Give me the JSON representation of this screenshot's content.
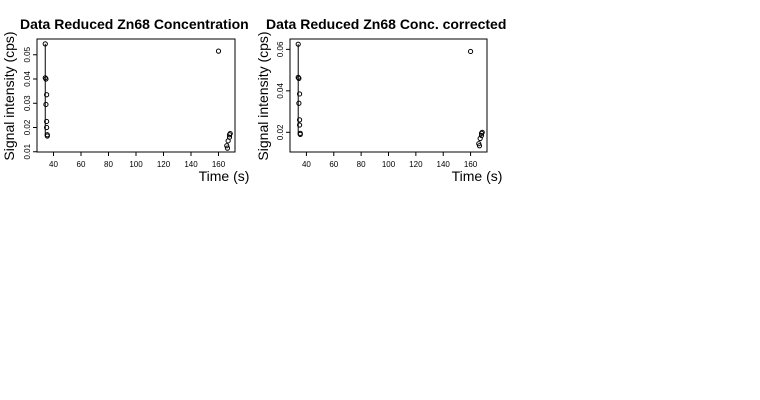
{
  "chart_data": [
    {
      "type": "scatter",
      "title": "Data Reduced Zn68 Concentration",
      "xlabel": "Time (s)",
      "ylabel": "Signal intensity (cps)",
      "xlim": [
        28,
        172
      ],
      "ylim": [
        0.0099,
        0.0565
      ],
      "xticks": [
        40,
        60,
        80,
        100,
        120,
        140,
        160
      ],
      "yticks": [
        0.01,
        0.02,
        0.03,
        0.04,
        0.05
      ],
      "ytick_labels": [
        "0.01",
        "0.02",
        "0.03",
        "0.04",
        "0.05"
      ],
      "grid": false,
      "points": [
        {
          "x": 34,
          "y": 0.0545
        },
        {
          "x": 34,
          "y": 0.0405
        },
        {
          "x": 34.5,
          "y": 0.04
        },
        {
          "x": 35,
          "y": 0.0335
        },
        {
          "x": 34.5,
          "y": 0.0295
        },
        {
          "x": 35,
          "y": 0.0225
        },
        {
          "x": 35,
          "y": 0.02
        },
        {
          "x": 35.5,
          "y": 0.017
        },
        {
          "x": 35.5,
          "y": 0.0165
        },
        {
          "x": 160,
          "y": 0.0515
        },
        {
          "x": 166,
          "y": 0.0125
        },
        {
          "x": 166.5,
          "y": 0.0115
        },
        {
          "x": 167,
          "y": 0.0145
        },
        {
          "x": 168,
          "y": 0.017
        },
        {
          "x": 168.5,
          "y": 0.0175
        },
        {
          "x": 168,
          "y": 0.016
        }
      ],
      "segment": {
        "x": 34,
        "y1": 0.0545,
        "y2": 0.0165
      }
    },
    {
      "type": "scatter",
      "title": "Data Reduced Zn68 Conc. corrected",
      "xlabel": "Time (s)",
      "ylabel": "Signal intensity (cps)",
      "xlim": [
        28,
        172
      ],
      "ylim": [
        0.0105,
        0.065
      ],
      "xticks": [
        40,
        60,
        80,
        100,
        120,
        140,
        160
      ],
      "yticks": [
        0.02,
        0.04,
        0.06
      ],
      "ytick_labels": [
        "0.02",
        "0.04",
        "0.06"
      ],
      "grid": false,
      "points": [
        {
          "x": 34,
          "y": 0.0625
        },
        {
          "x": 34,
          "y": 0.0465
        },
        {
          "x": 34.5,
          "y": 0.046
        },
        {
          "x": 35,
          "y": 0.0385
        },
        {
          "x": 34.5,
          "y": 0.034
        },
        {
          "x": 35,
          "y": 0.026
        },
        {
          "x": 35,
          "y": 0.0235
        },
        {
          "x": 35.5,
          "y": 0.0195
        },
        {
          "x": 35.5,
          "y": 0.019
        },
        {
          "x": 160,
          "y": 0.059
        },
        {
          "x": 166,
          "y": 0.0145
        },
        {
          "x": 166.5,
          "y": 0.0135
        },
        {
          "x": 167,
          "y": 0.017
        },
        {
          "x": 168,
          "y": 0.0195
        },
        {
          "x": 168.5,
          "y": 0.02
        },
        {
          "x": 168,
          "y": 0.0185
        }
      ],
      "segment": {
        "x": 34,
        "y1": 0.0625,
        "y2": 0.019
      }
    }
  ]
}
